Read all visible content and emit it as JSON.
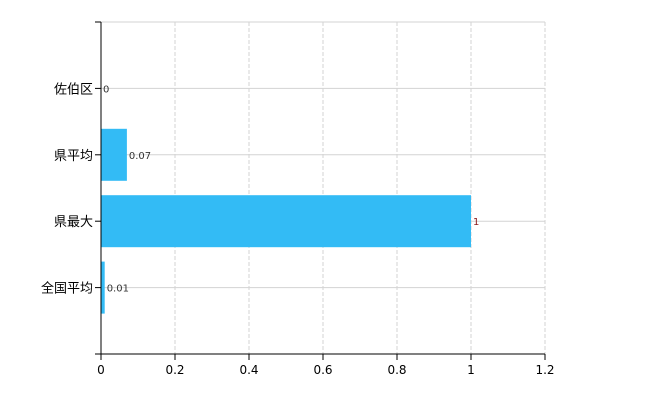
{
  "chart_data": {
    "type": "bar",
    "orientation": "horizontal",
    "categories": [
      "佐伯区",
      "県平均",
      "県最大",
      "全国平均"
    ],
    "values": [
      0,
      0.07,
      1,
      0.01
    ],
    "data_labels": [
      "0",
      "0.07",
      "1",
      "0.01"
    ],
    "xlim": [
      0,
      1.2
    ],
    "xticks": [
      "0",
      "0.2",
      "0.4",
      "0.6",
      "0.8",
      "1",
      "1.2"
    ],
    "grid": true,
    "colors": {
      "bar": "#33bbf5",
      "label": "#333333",
      "max_label": "#8b1a1a",
      "grid": "#d3d3d3"
    }
  }
}
